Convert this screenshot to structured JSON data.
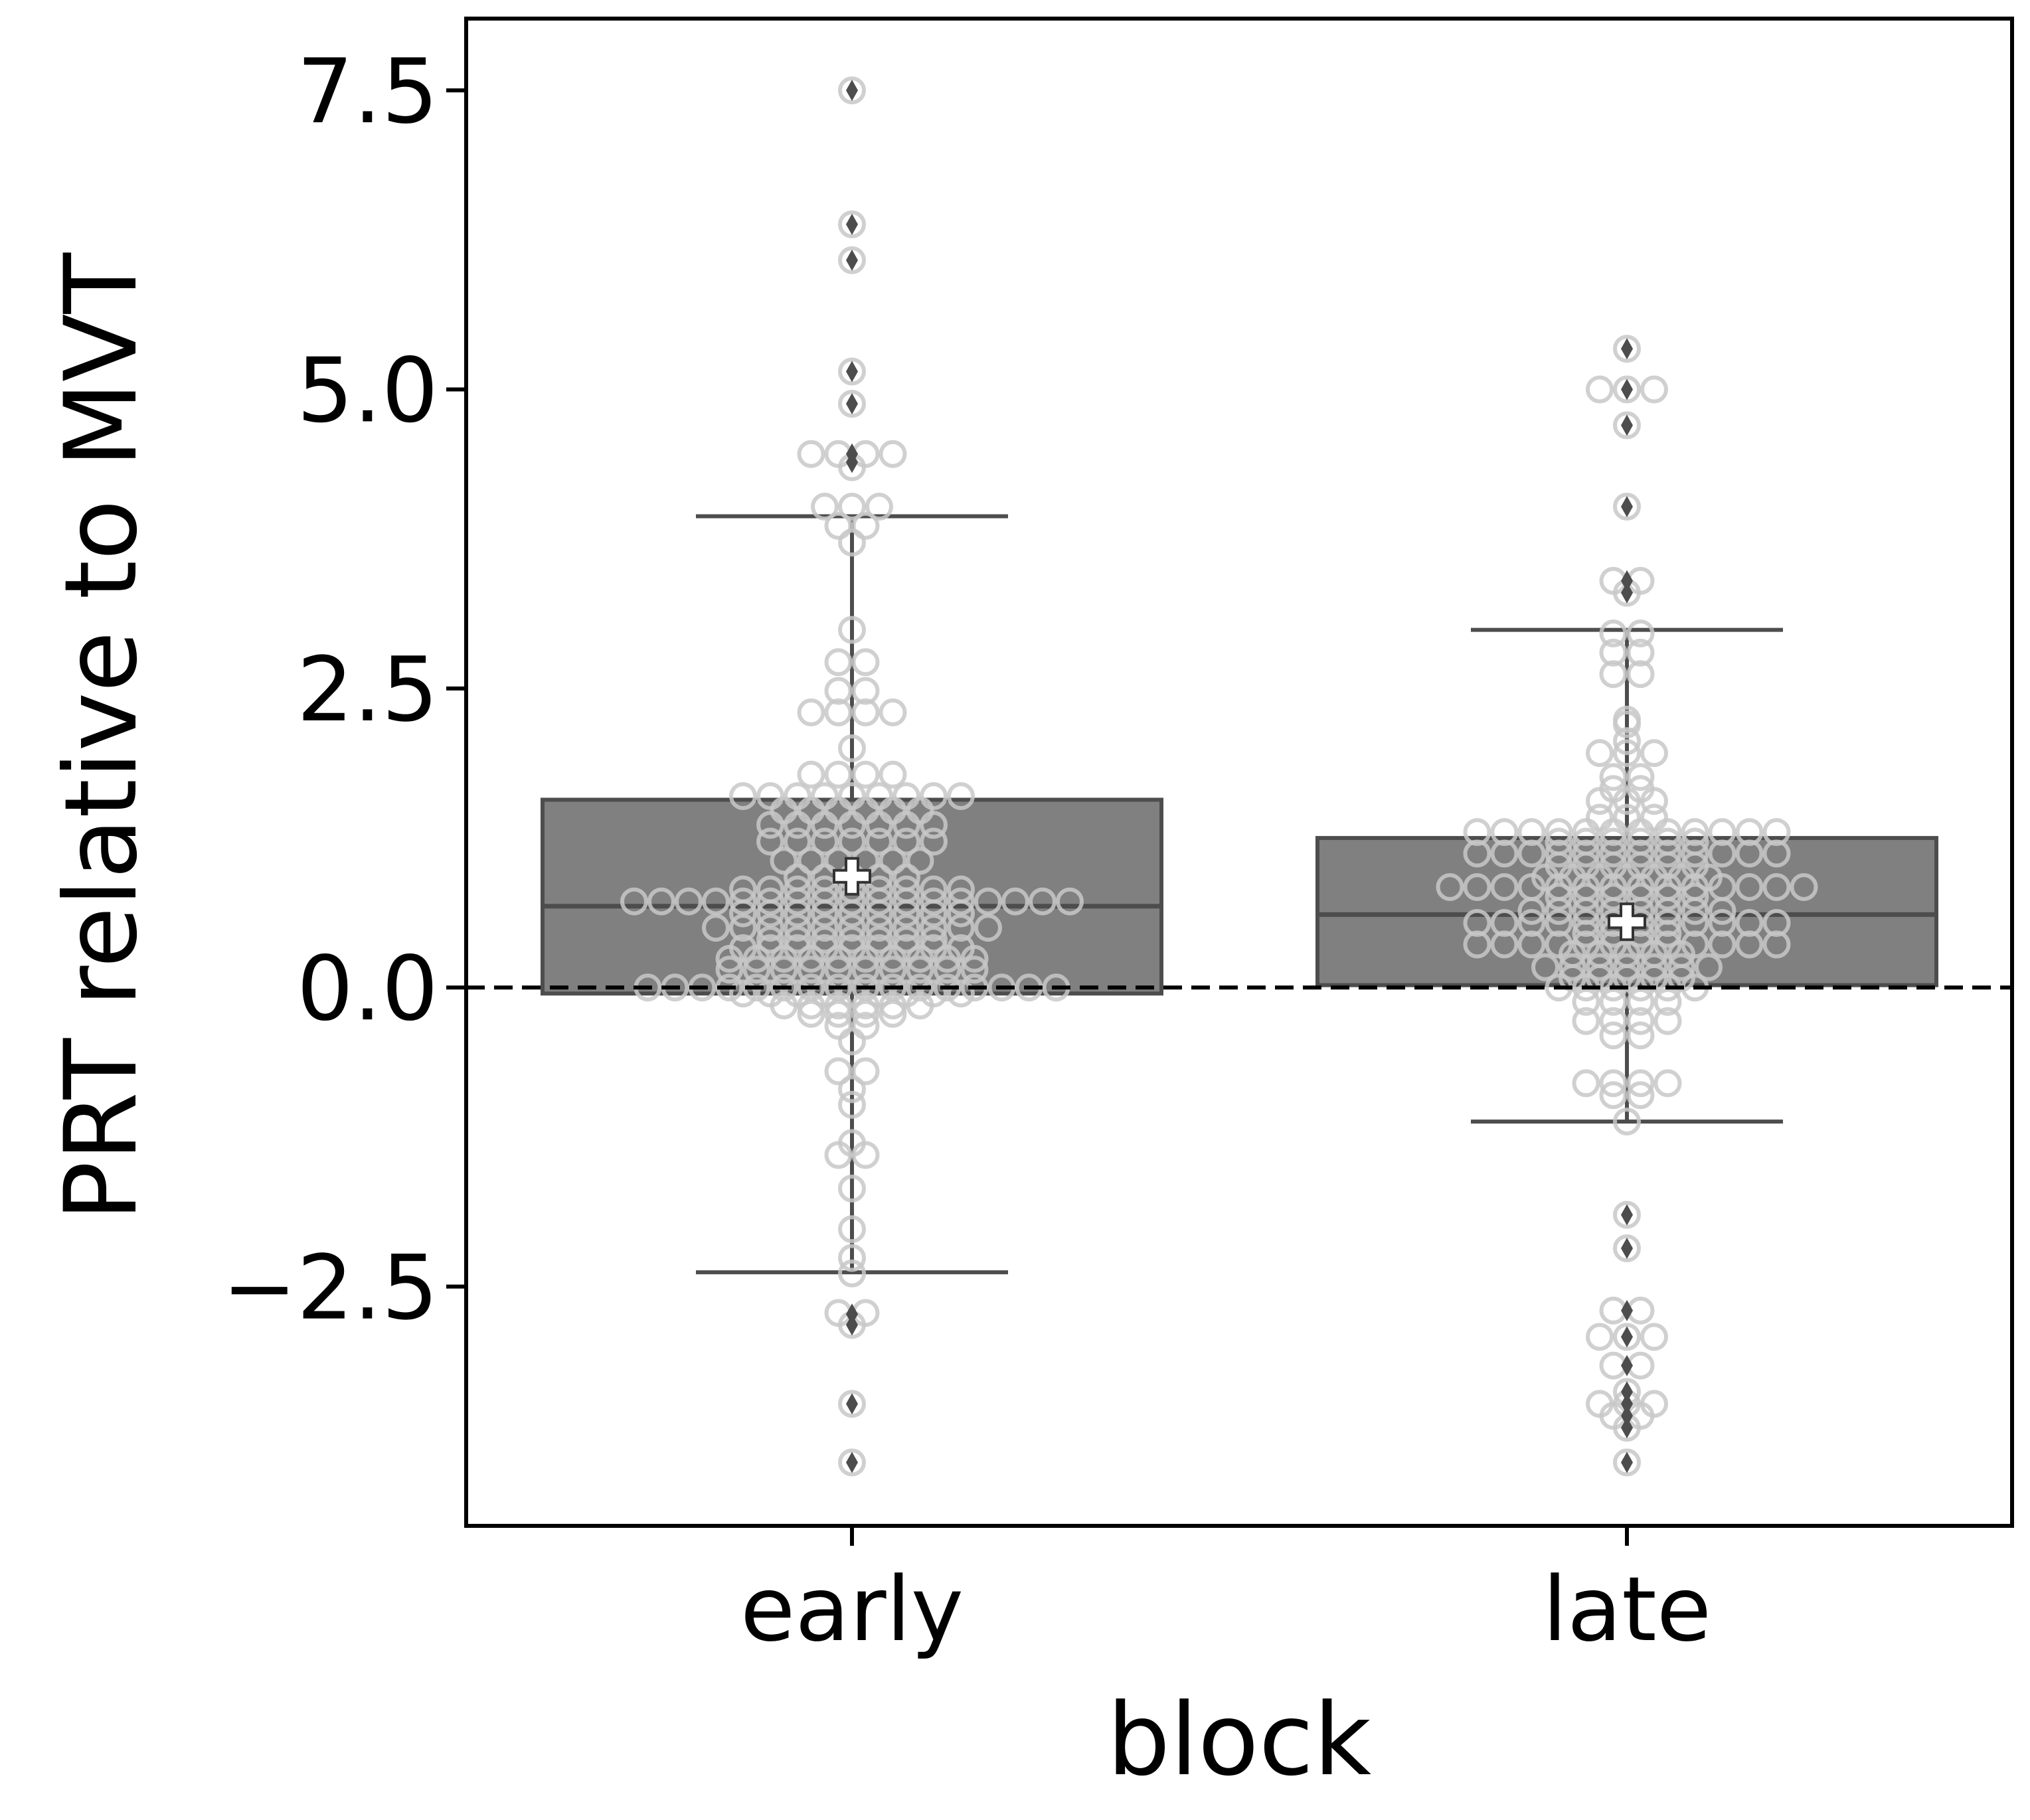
{
  "chart_data": {
    "type": "box",
    "xlabel": "block",
    "ylabel": "PRT relative to MVT",
    "categories": [
      "early",
      "late"
    ],
    "ylim": [
      -4.5,
      8.1
    ],
    "yticks": [
      -2.5,
      0.0,
      2.5,
      5.0,
      7.5
    ],
    "ytick_labels": [
      "−2.5",
      "0.0",
      "2.5",
      "5.0",
      "7.5"
    ],
    "reference_line": 0.0,
    "grid": false,
    "colors": {
      "box_fill": "#808080",
      "box_edge": "#4d4d4d",
      "swarm_edge": "#c8c8c8",
      "outlier": "#4d4d4d",
      "mean_marker": "#ffffff"
    },
    "boxes": [
      {
        "name": "early",
        "q1": -0.05,
        "median": 0.68,
        "q3": 1.57,
        "mean": 0.93,
        "whisker_low": -2.38,
        "whisker_high": 3.94,
        "outliers": [
          -3.97,
          -3.48,
          -2.82,
          -2.73,
          4.39,
          4.46,
          4.88,
          5.15,
          6.08,
          6.38,
          7.5
        ],
        "swarm": [
          {
            "y": 7.5,
            "n": 1
          },
          {
            "y": 6.38,
            "n": 1
          },
          {
            "y": 6.08,
            "n": 1
          },
          {
            "y": 5.15,
            "n": 1
          },
          {
            "y": 4.88,
            "n": 1
          },
          {
            "y": 4.46,
            "n": 4
          },
          {
            "y": 4.35,
            "n": 1
          },
          {
            "y": 4.02,
            "n": 3
          },
          {
            "y": 3.86,
            "n": 2
          },
          {
            "y": 3.72,
            "n": 1
          },
          {
            "y": 2.99,
            "n": 1
          },
          {
            "y": 2.72,
            "n": 2
          },
          {
            "y": 2.48,
            "n": 2
          },
          {
            "y": 2.3,
            "n": 4
          },
          {
            "y": 2.0,
            "n": 1
          },
          {
            "y": 1.78,
            "n": 4
          },
          {
            "y": 1.6,
            "n": 9
          },
          {
            "y": 1.48,
            "n": 6
          },
          {
            "y": 1.36,
            "n": 7
          },
          {
            "y": 1.22,
            "n": 7
          },
          {
            "y": 1.06,
            "n": 6
          },
          {
            "y": 0.92,
            "n": 5
          },
          {
            "y": 0.82,
            "n": 9
          },
          {
            "y": 0.72,
            "n": 17
          },
          {
            "y": 0.62,
            "n": 9
          },
          {
            "y": 0.5,
            "n": 11
          },
          {
            "y": 0.4,
            "n": 7
          },
          {
            "y": 0.33,
            "n": 9
          },
          {
            "y": 0.24,
            "n": 10
          },
          {
            "y": 0.15,
            "n": 10
          },
          {
            "y": 0.0,
            "n": 16
          },
          {
            "y": -0.05,
            "n": 9
          },
          {
            "y": -0.15,
            "n": 6
          },
          {
            "y": -0.22,
            "n": 4
          },
          {
            "y": -0.32,
            "n": 2
          },
          {
            "y": -0.45,
            "n": 1
          },
          {
            "y": -0.7,
            "n": 2
          },
          {
            "y": -0.85,
            "n": 1
          },
          {
            "y": -0.98,
            "n": 1
          },
          {
            "y": -1.3,
            "n": 1
          },
          {
            "y": -1.4,
            "n": 2
          },
          {
            "y": -1.68,
            "n": 1
          },
          {
            "y": -2.02,
            "n": 1
          },
          {
            "y": -2.26,
            "n": 1
          },
          {
            "y": -2.39,
            "n": 1
          },
          {
            "y": -2.72,
            "n": 2
          },
          {
            "y": -2.82,
            "n": 1
          },
          {
            "y": -3.48,
            "n": 1
          },
          {
            "y": -3.97,
            "n": 1
          }
        ]
      },
      {
        "name": "late",
        "q1": 0.02,
        "median": 0.61,
        "q3": 1.25,
        "mean": 0.55,
        "whisker_low": -1.12,
        "whisker_high": 2.99,
        "outliers": [
          -3.97,
          -3.68,
          -3.58,
          -3.48,
          -3.38,
          -3.16,
          -2.92,
          -2.7,
          -2.18,
          -1.9,
          3.3,
          3.4,
          4.02,
          4.7,
          5.0,
          5.34
        ],
        "swarm": [
          {
            "y": 5.34,
            "n": 1
          },
          {
            "y": 5.0,
            "n": 3
          },
          {
            "y": 4.7,
            "n": 1
          },
          {
            "y": 4.02,
            "n": 1
          },
          {
            "y": 3.4,
            "n": 2
          },
          {
            "y": 3.3,
            "n": 1
          },
          {
            "y": 2.96,
            "n": 2
          },
          {
            "y": 2.8,
            "n": 2
          },
          {
            "y": 2.62,
            "n": 2
          },
          {
            "y": 2.24,
            "n": 1
          },
          {
            "y": 2.2,
            "n": 1
          },
          {
            "y": 2.06,
            "n": 1
          },
          {
            "y": 1.96,
            "n": 3
          },
          {
            "y": 1.76,
            "n": 2
          },
          {
            "y": 1.66,
            "n": 2
          },
          {
            "y": 1.56,
            "n": 3
          },
          {
            "y": 1.42,
            "n": 3
          },
          {
            "y": 1.3,
            "n": 12
          },
          {
            "y": 1.22,
            "n": 6
          },
          {
            "y": 1.12,
            "n": 12
          },
          {
            "y": 1.02,
            "n": 6
          },
          {
            "y": 0.92,
            "n": 7
          },
          {
            "y": 0.84,
            "n": 14
          },
          {
            "y": 0.76,
            "n": 6
          },
          {
            "y": 0.64,
            "n": 8
          },
          {
            "y": 0.54,
            "n": 12
          },
          {
            "y": 0.45,
            "n": 4
          },
          {
            "y": 0.36,
            "n": 12
          },
          {
            "y": 0.28,
            "n": 5
          },
          {
            "y": 0.17,
            "n": 7
          },
          {
            "y": 0.08,
            "n": 5
          },
          {
            "y": 0.0,
            "n": 6
          },
          {
            "y": -0.12,
            "n": 4
          },
          {
            "y": -0.28,
            "n": 4
          },
          {
            "y": -0.4,
            "n": 2
          },
          {
            "y": -0.8,
            "n": 4
          },
          {
            "y": -0.9,
            "n": 2
          },
          {
            "y": -1.12,
            "n": 1
          },
          {
            "y": -1.9,
            "n": 1
          },
          {
            "y": -2.18,
            "n": 1
          },
          {
            "y": -2.7,
            "n": 2
          },
          {
            "y": -2.92,
            "n": 3
          },
          {
            "y": -3.16,
            "n": 2
          },
          {
            "y": -3.38,
            "n": 1
          },
          {
            "y": -3.48,
            "n": 3
          },
          {
            "y": -3.58,
            "n": 2
          },
          {
            "y": -3.68,
            "n": 1
          },
          {
            "y": -3.97,
            "n": 1
          }
        ]
      }
    ]
  }
}
